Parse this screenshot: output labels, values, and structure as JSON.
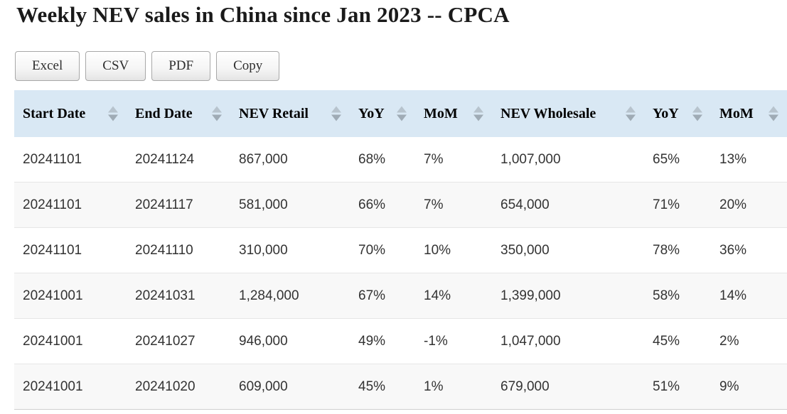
{
  "page": {
    "title": "Weekly NEV sales in China since Jan 2023 -- CPCA"
  },
  "toolbar": {
    "buttons": [
      {
        "id": "excel",
        "label": "Excel"
      },
      {
        "id": "csv",
        "label": "CSV"
      },
      {
        "id": "pdf",
        "label": "PDF"
      },
      {
        "id": "copy",
        "label": "Copy"
      }
    ]
  },
  "table": {
    "columns": [
      {
        "label": "Start Date",
        "icon": "sort-arrows-icon"
      },
      {
        "label": "End Date",
        "icon": "sort-arrows-icon"
      },
      {
        "label": "NEV Retail",
        "icon": "sort-arrows-icon"
      },
      {
        "label": "YoY",
        "icon": "sort-arrows-icon"
      },
      {
        "label": "MoM",
        "icon": "sort-arrows-icon"
      },
      {
        "label": "NEV Wholesale",
        "icon": "sort-arrows-icon"
      },
      {
        "label": "YoY",
        "icon": "sort-arrows-icon"
      },
      {
        "label": "MoM",
        "icon": "sort-arrows-icon"
      }
    ],
    "rows": [
      [
        "20241101",
        "20241124",
        "867,000",
        "68%",
        "7%",
        "1,007,000",
        "65%",
        "13%"
      ],
      [
        "20241101",
        "20241117",
        "581,000",
        "66%",
        "7%",
        "654,000",
        "71%",
        "20%"
      ],
      [
        "20241101",
        "20241110",
        "310,000",
        "70%",
        "10%",
        "350,000",
        "78%",
        "36%"
      ],
      [
        "20241001",
        "20241031",
        "1,284,000",
        "67%",
        "14%",
        "1,399,000",
        "58%",
        "14%"
      ],
      [
        "20241001",
        "20241027",
        "946,000",
        "49%",
        "-1%",
        "1,047,000",
        "45%",
        "2%"
      ],
      [
        "20241001",
        "20241020",
        "609,000",
        "45%",
        "1%",
        "679,000",
        "51%",
        "9%"
      ]
    ]
  },
  "colors": {
    "header_bg": "#d9e8f4",
    "stripe_row_bg": "#f8f8f8",
    "row_divider": "#e6e6e6",
    "table_bottom_border": "#cfcfcf",
    "sort_arrow_up": "#b7c3cd",
    "sort_arrow_down": "#9fabb5",
    "title_text": "#1a1a1a",
    "body_text": "#333333"
  }
}
